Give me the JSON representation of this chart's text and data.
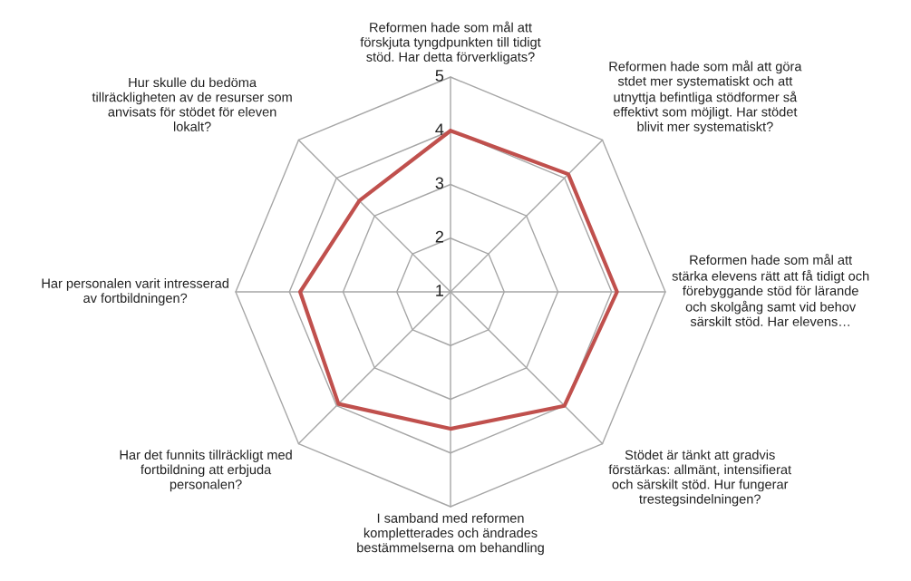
{
  "chart_data": {
    "type": "radar",
    "categories": [
      "Reformen hade som mål att\nförskjuta tyngdpunkten till tidigt\nstöd. Har detta förverkligats?",
      "Reformen hade som mål att göra\nstdet mer systematiskt och att\nutnyttja befintliga stödformer så\neffektivt som möjligt. Har stödet\nblivit mer systematiskt?",
      "Reformen hade som mål att\nstärka elevens rätt att få tidigt och\nförebyggande stöd för lärande\noch skolgång samt vid behov\nsärskilt stöd. Har elevens…",
      "Stödet är tänkt att gradvis\nförstärkas: allmänt, intensifierat\noch särskilt stöd. Hur fungerar\ntrestegsindelningen?",
      "I samband med reformen\nkompletterades och ändrades\nbestämmelserna om behandling",
      "Har det funnits tillräckligt med\nfortbildning att erbjuda\npersonalen?",
      "Har personalen varit intresserad\nav fortbildningen?",
      "Hur skulle du bedöma\ntillräckligheten av de resurser som\nanvisats för stödet för eleven\nlokalt?"
    ],
    "series": [
      {
        "color": "#c0504d",
        "values": [
          4.0,
          4.1,
          4.1,
          4.0,
          3.55,
          3.95,
          3.8,
          3.4
        ]
      }
    ],
    "ylim": [
      1,
      5
    ],
    "yticks": [
      1,
      2,
      3,
      4,
      5
    ],
    "grid": true,
    "marker": "none",
    "line_style": "solid"
  }
}
